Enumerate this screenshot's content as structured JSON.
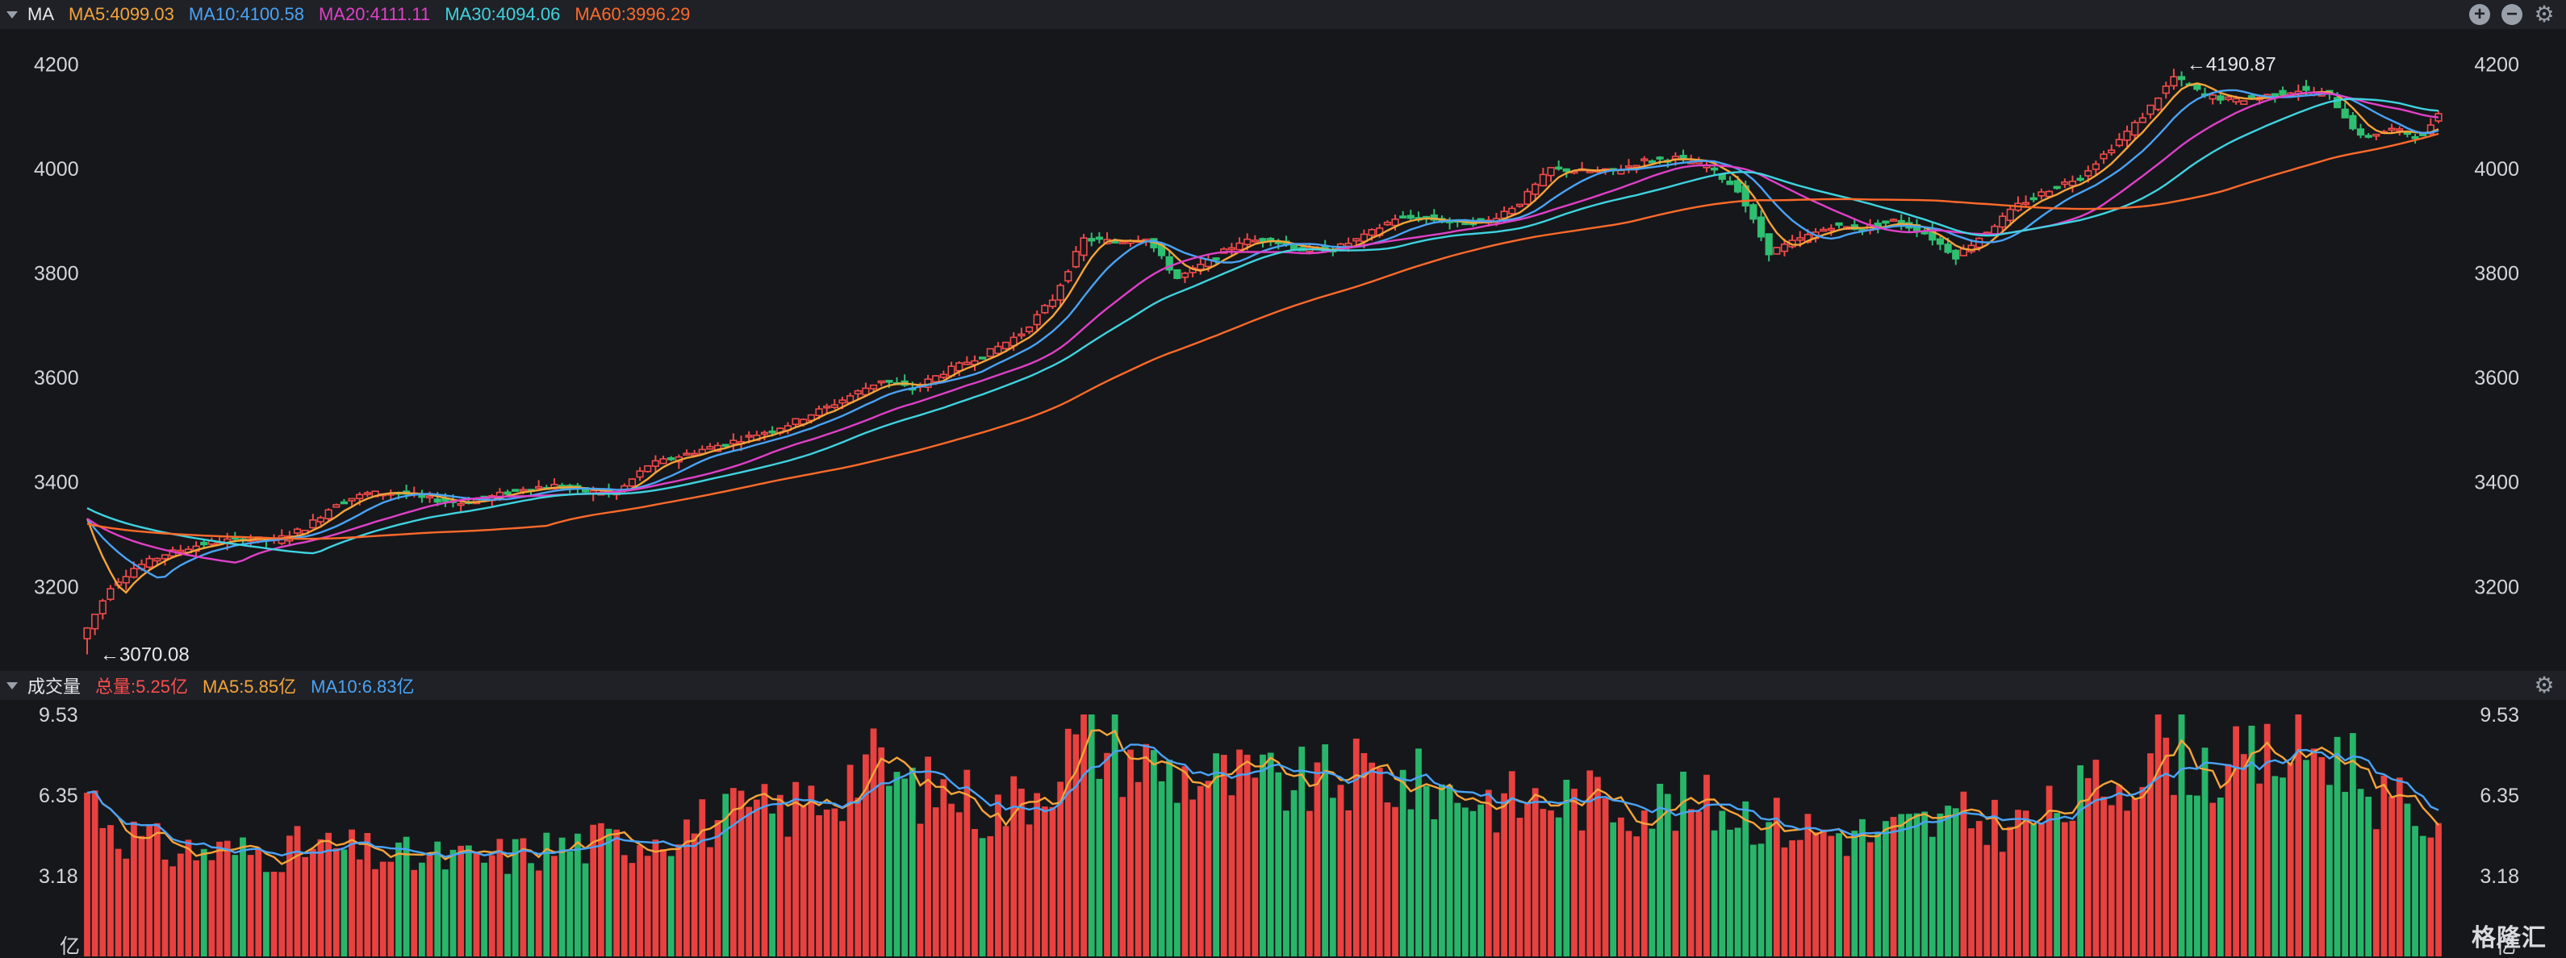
{
  "price_header": {
    "indicator": "MA",
    "legend": [
      {
        "label": "MA5:4099.03",
        "color": "#f5a43a"
      },
      {
        "label": "MA10:4100.58",
        "color": "#4aa3f5"
      },
      {
        "label": "MA20:4111.11",
        "color": "#e040c8"
      },
      {
        "label": "MA30:4094.06",
        "color": "#3fd3e0"
      },
      {
        "label": "MA60:3996.29",
        "color": "#ff6a2a"
      }
    ],
    "zoom_in_symbol": "+",
    "zoom_out_symbol": "−",
    "settings_symbol": "⚙"
  },
  "volume_header": {
    "indicator": "成交量",
    "legend": [
      {
        "label": "总量:5.25亿",
        "color": "#ff4d4f"
      },
      {
        "label": "MA5:5.85亿",
        "color": "#f5a43a"
      },
      {
        "label": "MA10:6.83亿",
        "color": "#4aa3f5"
      }
    ],
    "settings_symbol": "⚙"
  },
  "watermark": "格隆汇",
  "chart_data": [
    {
      "type": "candlestick",
      "y_ticks": [
        "4200",
        "4000",
        "3800",
        "3600",
        "3400",
        "3200"
      ],
      "ylim": [
        3060,
        4230
      ],
      "annotations": [
        {
          "text": "←4190.87",
          "value": 4190.87
        },
        {
          "text": "←3070.08",
          "value": 3070.08
        }
      ],
      "series_colors": {
        "up": "#f24a4a",
        "down": "#2fbf71"
      },
      "anchors": [
        [
          0,
          3120
        ],
        [
          3,
          3200
        ],
        [
          6,
          3235
        ],
        [
          10,
          3262
        ],
        [
          15,
          3282
        ],
        [
          20,
          3292
        ],
        [
          24,
          3288
        ],
        [
          28,
          3312
        ],
        [
          32,
          3360
        ],
        [
          36,
          3378
        ],
        [
          40,
          3380
        ],
        [
          44,
          3368
        ],
        [
          48,
          3360
        ],
        [
          52,
          3372
        ],
        [
          56,
          3388
        ],
        [
          60,
          3393
        ],
        [
          64,
          3382
        ],
        [
          68,
          3378
        ],
        [
          72,
          3432
        ],
        [
          78,
          3458
        ],
        [
          84,
          3482
        ],
        [
          90,
          3510
        ],
        [
          96,
          3550
        ],
        [
          102,
          3595
        ],
        [
          106,
          3578
        ],
        [
          110,
          3610
        ],
        [
          116,
          3650
        ],
        [
          120,
          3685
        ],
        [
          124,
          3750
        ],
        [
          128,
          3865
        ],
        [
          132,
          3860
        ],
        [
          136,
          3868
        ],
        [
          140,
          3790
        ],
        [
          144,
          3822
        ],
        [
          148,
          3860
        ],
        [
          152,
          3865
        ],
        [
          156,
          3845
        ],
        [
          160,
          3845
        ],
        [
          164,
          3870
        ],
        [
          168,
          3905
        ],
        [
          172,
          3905
        ],
        [
          176,
          3895
        ],
        [
          180,
          3900
        ],
        [
          184,
          3935
        ],
        [
          188,
          4000
        ],
        [
          192,
          3995
        ],
        [
          196,
          3995
        ],
        [
          200,
          4015
        ],
        [
          204,
          4020
        ],
        [
          208,
          4005
        ],
        [
          212,
          3960
        ],
        [
          216,
          3840
        ],
        [
          220,
          3865
        ],
        [
          224,
          3890
        ],
        [
          228,
          3885
        ],
        [
          232,
          3900
        ],
        [
          236,
          3878
        ],
        [
          240,
          3832
        ],
        [
          244,
          3880
        ],
        [
          248,
          3930
        ],
        [
          252,
          3960
        ],
        [
          256,
          3985
        ],
        [
          260,
          4040
        ],
        [
          264,
          4100
        ],
        [
          268,
          4175
        ],
        [
          272,
          4140
        ],
        [
          276,
          4130
        ],
        [
          280,
          4140
        ],
        [
          284,
          4150
        ],
        [
          288,
          4140
        ],
        [
          292,
          4060
        ],
        [
          296,
          4075
        ],
        [
          300,
          4060
        ],
        [
          302,
          4110
        ]
      ],
      "ma_periods": [
        5,
        10,
        20,
        30,
        60
      ]
    },
    {
      "type": "bar",
      "y_ticks": [
        "9.53",
        "6.35",
        "3.18"
      ],
      "unit": "亿",
      "ylim": [
        0,
        9.53
      ],
      "anchors": [
        [
          0,
          6.6
        ],
        [
          4,
          5.0
        ],
        [
          10,
          4.2
        ],
        [
          20,
          4.1
        ],
        [
          30,
          4.3
        ],
        [
          40,
          3.9
        ],
        [
          50,
          3.8
        ],
        [
          60,
          4.3
        ],
        [
          70,
          4.6
        ],
        [
          76,
          5.1
        ],
        [
          84,
          5.6
        ],
        [
          90,
          5.8
        ],
        [
          96,
          6.5
        ],
        [
          100,
          7.7
        ],
        [
          106,
          6.6
        ],
        [
          112,
          6.5
        ],
        [
          116,
          5.6
        ],
        [
          122,
          6.7
        ],
        [
          128,
          8.8
        ],
        [
          134,
          7.9
        ],
        [
          140,
          7.2
        ],
        [
          146,
          7.0
        ],
        [
          152,
          6.8
        ],
        [
          158,
          6.8
        ],
        [
          164,
          7.2
        ],
        [
          170,
          6.8
        ],
        [
          176,
          6.5
        ],
        [
          182,
          6.1
        ],
        [
          188,
          6.2
        ],
        [
          194,
          6.2
        ],
        [
          200,
          6.0
        ],
        [
          206,
          6.0
        ],
        [
          212,
          5.8
        ],
        [
          218,
          5.2
        ],
        [
          224,
          4.9
        ],
        [
          230,
          4.8
        ],
        [
          236,
          5.2
        ],
        [
          242,
          5.4
        ],
        [
          248,
          5.2
        ],
        [
          252,
          5.6
        ],
        [
          258,
          6.6
        ],
        [
          262,
          7.2
        ],
        [
          266,
          8.5
        ],
        [
          270,
          7.8
        ],
        [
          274,
          7.3
        ],
        [
          278,
          7.6
        ],
        [
          282,
          8.0
        ],
        [
          286,
          8.2
        ],
        [
          290,
          8.0
        ],
        [
          294,
          6.4
        ],
        [
          298,
          5.6
        ],
        [
          302,
          5.25
        ]
      ]
    }
  ]
}
